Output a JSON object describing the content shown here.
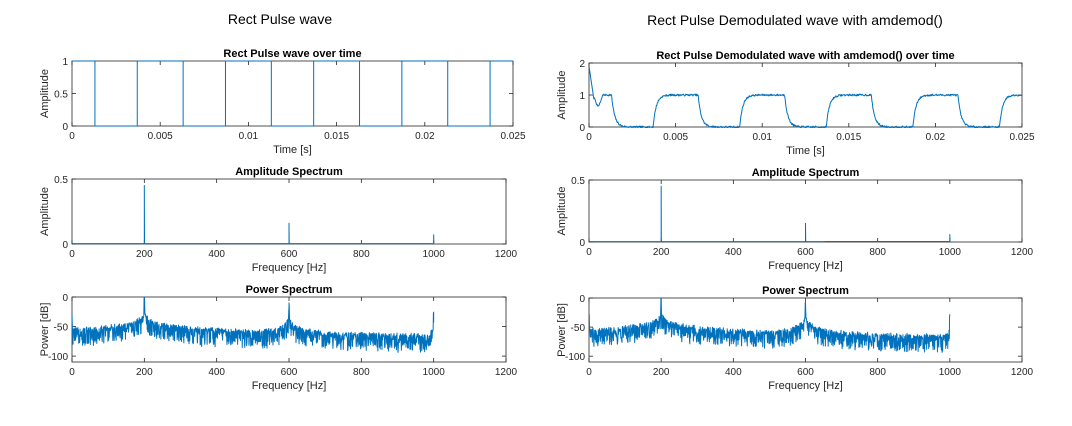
{
  "figure_titles": {
    "left": "Rect Pulse wave",
    "right": "Rect Pulse Demodulated wave with amdemod()"
  },
  "colors": {
    "trace": "#0072bd",
    "axes": "#262626",
    "background": "#ffffff"
  },
  "chart_data": [
    {
      "id": "left_time",
      "type": "line",
      "title": "Rect Pulse wave over time",
      "xlabel": "Time [s]",
      "ylabel": "Amplitude",
      "xlim": [
        0,
        0.025
      ],
      "ylim": [
        0,
        1
      ],
      "xticks": [
        "0",
        "0.005",
        "0.01",
        "0.015",
        "0.02",
        "0.025"
      ],
      "yticks": [
        "0",
        "0.5",
        "1"
      ],
      "grid": false,
      "series": [
        {
          "kind": "square_wave",
          "high": 1,
          "low": 0,
          "rising_edges": [
            0.0037,
            0.0087,
            0.0137,
            0.0187,
            0.0237
          ],
          "falling_edges": [
            0.0013,
            0.0063,
            0.0113,
            0.0163,
            0.0213
          ],
          "start_level": 1
        }
      ]
    },
    {
      "id": "left_amp",
      "type": "line",
      "title": "Amplitude Spectrum",
      "xlabel": "Frequency [Hz]",
      "ylabel": "Amplitude",
      "xlim": [
        0,
        1200
      ],
      "ylim": [
        0,
        0.5
      ],
      "xticks": [
        "0",
        "200",
        "400",
        "600",
        "800",
        "1000",
        "1200"
      ],
      "yticks": [
        "0",
        "0.5"
      ],
      "grid": false,
      "series": [
        {
          "kind": "spectrum_peaks",
          "fmax": 1000,
          "peaks": [
            {
              "f": 0,
              "value": 0.02
            },
            {
              "f": 200,
              "value": 0.45
            },
            {
              "f": 600,
              "value": 0.16
            },
            {
              "f": 1000,
              "value": 0.07
            }
          ]
        }
      ]
    },
    {
      "id": "left_power",
      "type": "line",
      "title": "Power Spectrum",
      "xlabel": "Frequency [Hz]",
      "ylabel": "Power [dB]",
      "xlim": [
        0,
        1200
      ],
      "ylim": [
        -110,
        0
      ],
      "xticks": [
        "0",
        "200",
        "400",
        "600",
        "800",
        "1000",
        "1200"
      ],
      "yticks": [
        "0",
        "-50",
        "-100"
      ],
      "grid": false,
      "series": [
        {
          "kind": "power_spectrum",
          "fmax": 1000,
          "floor_db": -78,
          "peaks": [
            {
              "f": 0,
              "value": -30
            },
            {
              "f": 200,
              "value": 0
            },
            {
              "f": 600,
              "value": -10
            },
            {
              "f": 1000,
              "value": -25
            }
          ]
        }
      ]
    },
    {
      "id": "right_time",
      "type": "line",
      "title": "Rect Pulse Demodulated wave with amdemod() over time",
      "xlabel": "Time [s]",
      "ylabel": "Amplitude",
      "xlim": [
        0,
        0.025
      ],
      "ylim": [
        0,
        2
      ],
      "xticks": [
        "0",
        "0.005",
        "0.01",
        "0.015",
        "0.02",
        "0.025"
      ],
      "yticks": [
        "0",
        "1",
        "2"
      ],
      "grid": false,
      "series": [
        {
          "kind": "demod_wave",
          "high": 1,
          "low": 0,
          "initial_spike": 1.9,
          "rising_edges": [
            0.0037,
            0.0087,
            0.0137,
            0.0187,
            0.0237
          ],
          "falling_edges": [
            0.0013,
            0.0063,
            0.0113,
            0.0163,
            0.0213
          ]
        }
      ]
    },
    {
      "id": "right_amp",
      "type": "line",
      "title": "Amplitude Spectrum",
      "xlabel": "Frequency [Hz]",
      "ylabel": "Amplitude",
      "xlim": [
        0,
        1200
      ],
      "ylim": [
        0,
        0.5
      ],
      "xticks": [
        "0",
        "200",
        "400",
        "600",
        "800",
        "1000",
        "1200"
      ],
      "yticks": [
        "0",
        "0.5"
      ],
      "grid": false,
      "series": [
        {
          "kind": "spectrum_peaks",
          "fmax": 1000,
          "peaks": [
            {
              "f": 0,
              "value": 0.02
            },
            {
              "f": 200,
              "value": 0.45
            },
            {
              "f": 600,
              "value": 0.15
            },
            {
              "f": 1000,
              "value": 0.06
            }
          ]
        }
      ]
    },
    {
      "id": "right_power",
      "type": "line",
      "title": "Power Spectrum",
      "xlabel": "Frequency [Hz]",
      "ylabel": "Power [dB]",
      "xlim": [
        0,
        1200
      ],
      "ylim": [
        -110,
        0
      ],
      "xticks": [
        "0",
        "200",
        "400",
        "600",
        "800",
        "1000",
        "1200"
      ],
      "yticks": [
        "0",
        "-50",
        "-100"
      ],
      "grid": false,
      "series": [
        {
          "kind": "power_spectrum",
          "fmax": 1000,
          "floor_db": -78,
          "peaks": [
            {
              "f": 0,
              "value": -30
            },
            {
              "f": 200,
              "value": 0
            },
            {
              "f": 600,
              "value": -8
            },
            {
              "f": 1000,
              "value": -28
            }
          ]
        }
      ]
    }
  ]
}
